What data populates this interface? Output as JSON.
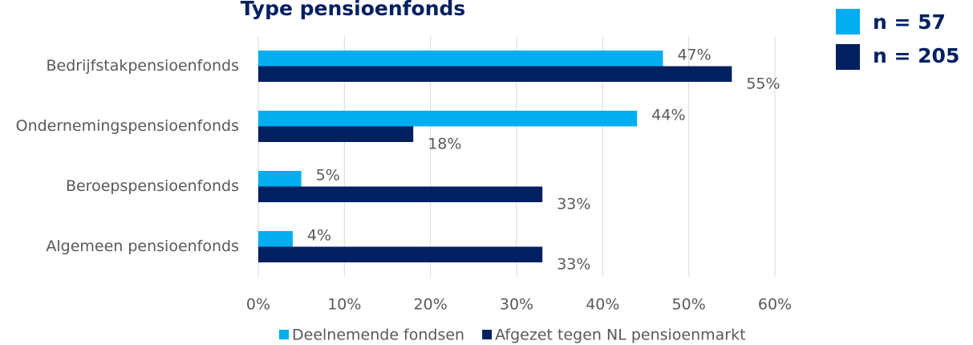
{
  "chart_data": {
    "type": "bar",
    "orientation": "horizontal",
    "title": "Type pensioenfonds",
    "annotations": [
      "n = 57",
      "n = 205"
    ],
    "categories": [
      "Bedrijfstakpensioenfonds",
      "Ondernemingspensioenfonds",
      "Beroepspensioenfonds",
      "Algemeen pensioenfonds"
    ],
    "series": [
      {
        "name": "Deelnemende fondsen",
        "color": "#00aeef",
        "values": [
          47,
          44,
          5,
          4
        ],
        "value_labels": [
          "47%",
          "44%",
          "5%",
          "4%"
        ]
      },
      {
        "name": "Afgezet tegen NL pensioenmarkt",
        "color": "#002060",
        "values": [
          55,
          18,
          33,
          33
        ],
        "value_labels": [
          "55%",
          "18%",
          "33%",
          "33%"
        ]
      }
    ],
    "xlim": [
      0,
      60
    ],
    "xticks": [
      {
        "value": 0,
        "label": "0%"
      },
      {
        "value": 10,
        "label": "10%"
      },
      {
        "value": 20,
        "label": "20%"
      },
      {
        "value": 30,
        "label": "30%"
      },
      {
        "value": 40,
        "label": "40%"
      },
      {
        "value": 50,
        "label": "50%"
      },
      {
        "value": 60,
        "label": "60%"
      }
    ],
    "grid": true,
    "legend": "bottom"
  }
}
